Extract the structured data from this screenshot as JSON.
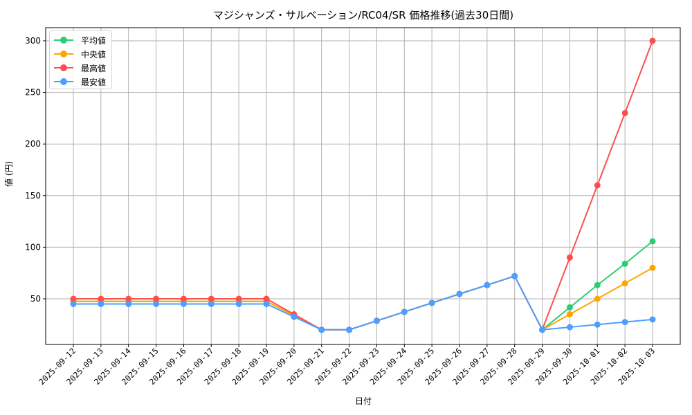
{
  "title": "マジシャンズ・サルベーション/RC04/SR 価格推移(過去30日間)",
  "axes": {
    "xlabel": "日付",
    "ylabel": "値 (円)",
    "yticks": [
      50,
      100,
      150,
      200,
      250,
      300
    ]
  },
  "legend": [
    {
      "name": "平均値",
      "color": "#2ecc71"
    },
    {
      "name": "中央値",
      "color": "#ffa500"
    },
    {
      "name": "最高値",
      "color": "#ff4d4d"
    },
    {
      "name": "最安値",
      "color": "#4d9fff"
    }
  ],
  "chart_data": {
    "type": "line",
    "title": "マジシャンズ・サルベーション/RC04/SR 価格推移(過去30日間)",
    "xlabel": "日付",
    "ylabel": "値 (円)",
    "ylim": [
      5,
      314
    ],
    "grid": true,
    "legend_position": "upper left",
    "categories": [
      "2025-09-12",
      "2025-09-13",
      "2025-09-14",
      "2025-09-15",
      "2025-09-16",
      "2025-09-17",
      "2025-09-18",
      "2025-09-19",
      "2025-09-20",
      "2025-09-21",
      "2025-09-22",
      "2025-09-23",
      "2025-09-24",
      "2025-09-25",
      "2025-09-26",
      "2025-09-27",
      "2025-09-28",
      "2025-09-29",
      "2025-09-30",
      "2025-10-01",
      "2025-10-02",
      "2025-10-03"
    ],
    "series": [
      {
        "name": "平均値",
        "color": "#2ecc71",
        "values": [
          47.5,
          47.5,
          47.5,
          47.5,
          47.5,
          47.5,
          47.5,
          47.5,
          33.8,
          20,
          20,
          28.7,
          37.3,
          46,
          54.7,
          63.3,
          72,
          20,
          41.7,
          63.3,
          84,
          105.7
        ]
      },
      {
        "name": "中央値",
        "color": "#ffa500",
        "values": [
          47.5,
          47.5,
          47.5,
          47.5,
          47.5,
          47.5,
          47.5,
          47.5,
          33.8,
          20,
          20,
          28.7,
          37.3,
          46,
          54.7,
          63.3,
          72,
          20,
          35,
          50,
          65,
          80
        ]
      },
      {
        "name": "最高値",
        "color": "#ff4d4d",
        "values": [
          50,
          50,
          50,
          50,
          50,
          50,
          50,
          50,
          35,
          20,
          20,
          28.7,
          37.3,
          46,
          54.7,
          63.3,
          72,
          20,
          90,
          160,
          230,
          300
        ]
      },
      {
        "name": "最安値",
        "color": "#4d9fff",
        "values": [
          45,
          45,
          45,
          45,
          45,
          45,
          45,
          45,
          32.5,
          20,
          20,
          28.7,
          37.3,
          46,
          54.7,
          63.3,
          72,
          20,
          22.5,
          25,
          27.5,
          30
        ]
      }
    ]
  }
}
